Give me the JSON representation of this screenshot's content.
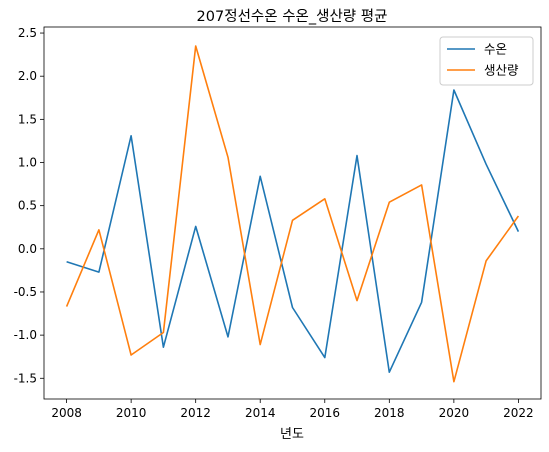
{
  "chart_data": {
    "type": "line",
    "title": "207정선수온 수온_생산량 평균",
    "xlabel": "년도",
    "ylabel": "",
    "x": [
      2008,
      2009,
      2010,
      2011,
      2012,
      2013,
      2014,
      2015,
      2016,
      2017,
      2018,
      2019,
      2020,
      2021,
      2022
    ],
    "xticks": [
      "2008",
      "2010",
      "2012",
      "2014",
      "2016",
      "2018",
      "2020",
      "2022"
    ],
    "yticks": [
      "-1.5",
      "-1.0",
      "-0.5",
      "0.0",
      "0.5",
      "1.0",
      "1.5",
      "2.0",
      "2.5"
    ],
    "xlim": [
      2007.3,
      2022.7
    ],
    "ylim": [
      -1.74,
      2.57
    ],
    "grid": false,
    "legend_position": "upper right",
    "series": [
      {
        "name": "수온",
        "color": "#1f77b4",
        "values": [
          -0.15,
          -0.27,
          1.31,
          -1.14,
          0.26,
          -1.02,
          0.84,
          -0.68,
          -1.26,
          1.08,
          -1.43,
          -0.62,
          1.84,
          0.98,
          0.2
        ]
      },
      {
        "name": "생산량",
        "color": "#ff7f0e",
        "values": [
          -0.67,
          0.22,
          -1.23,
          -0.97,
          2.35,
          1.06,
          -1.11,
          0.33,
          0.58,
          -0.6,
          0.54,
          0.74,
          -1.54,
          -0.14,
          0.38
        ]
      }
    ]
  }
}
